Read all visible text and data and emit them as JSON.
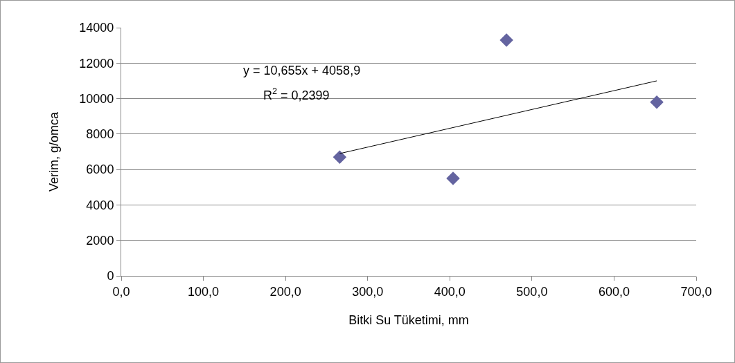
{
  "chart_data": {
    "type": "scatter",
    "xlabel": "Bitki Su Tüketimi, mm",
    "ylabel": "Verim, g/omca",
    "series": [
      {
        "color": "#6464a0",
        "marker": "diamond",
        "x": [
          266,
          404,
          469,
          652
        ],
        "values": [
          6700,
          5500,
          13300,
          9800
        ]
      },
      {
        "type": "line",
        "color": "#000000",
        "marker": "none",
        "x": [
          266,
          652
        ],
        "values": [
          6900,
          11000
        ]
      }
    ],
    "xlim": [
      0,
      700
    ],
    "xticks": [
      {
        "value": 0,
        "label": "0,0"
      },
      {
        "value": 100,
        "label": "100,0"
      },
      {
        "value": 200,
        "label": "200,0"
      },
      {
        "value": 300,
        "label": "300,0"
      },
      {
        "value": 400,
        "label": "400,0"
      },
      {
        "value": 500,
        "label": "500,0"
      },
      {
        "value": 600,
        "label": "600,0"
      },
      {
        "value": 700,
        "label": "700,0"
      }
    ],
    "ylim": [
      0,
      14000
    ],
    "yticks": [
      0,
      2000,
      4000,
      6000,
      8000,
      10000,
      12000,
      14000
    ],
    "annotations": [
      "y = 10,655x + 4058,9",
      "R$^{2}$ = 0,2399"
    ],
    "grid": "y"
  }
}
